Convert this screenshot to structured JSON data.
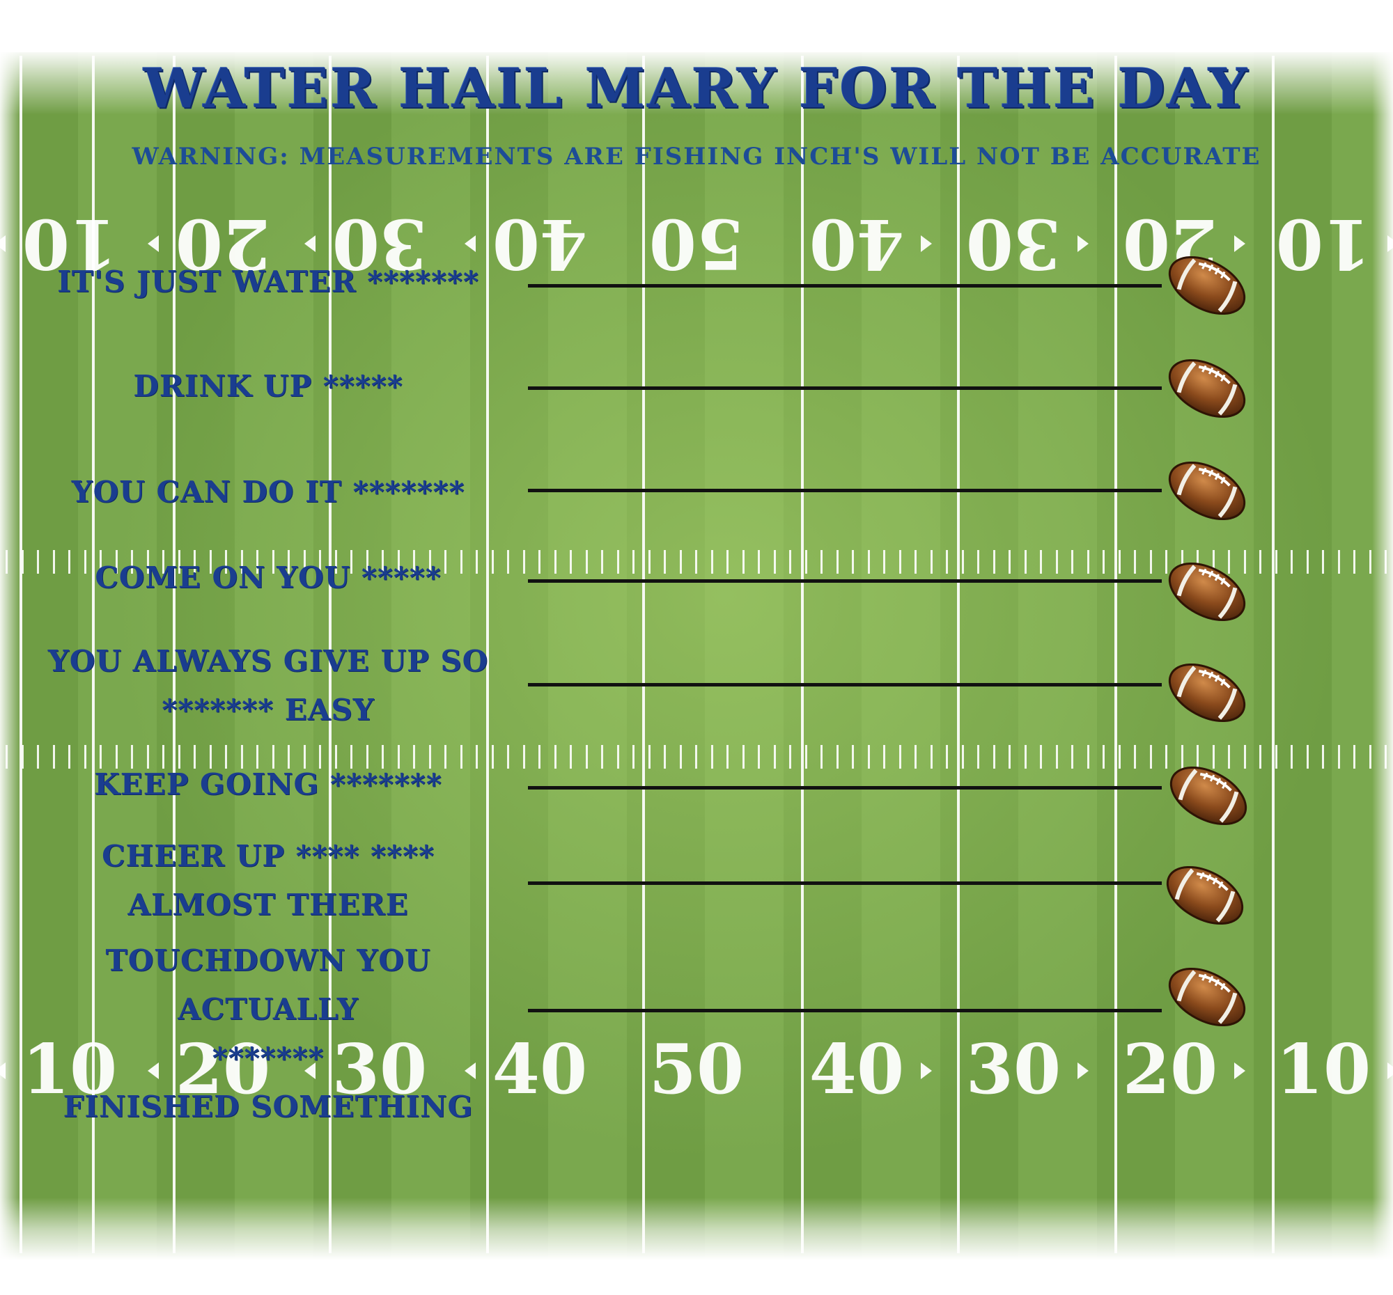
{
  "title": "WATER HAIL MARY FOR THE DAY",
  "subtitle": "WARNING: MEASUREMENTS ARE FISHING INCH'S WILL NOT BE ACCURATE",
  "field": {
    "top_numbers": [
      "10",
      "20",
      "30",
      "40",
      "50",
      "40",
      "30",
      "20",
      "10"
    ],
    "bottom_numbers": [
      "10",
      "20",
      "30",
      "40",
      "50",
      "40",
      "30",
      "20",
      "10"
    ]
  },
  "rows": [
    {
      "lines": [
        "IT'S JUST WATER *******"
      ]
    },
    {
      "lines": [
        "DRINK UP *****"
      ]
    },
    {
      "lines": [
        "YOU CAN DO IT *******"
      ]
    },
    {
      "lines": [
        "COME ON YOU *****"
      ]
    },
    {
      "lines": [
        "YOU ALWAYS GIVE UP SO",
        "******* EASY"
      ]
    },
    {
      "lines": [
        "KEEP GOING *******"
      ]
    },
    {
      "lines": [
        "CHEER UP **** ****",
        "ALMOST THERE"
      ]
    },
    {
      "lines": [
        "TOUCHDOWN YOU ACTUALLY",
        "*******",
        "FINISHED SOMETHING"
      ]
    }
  ],
  "icons": {
    "ball": "football-icon"
  },
  "colors": {
    "text": "#1a3d8f",
    "field": "#74a24a",
    "line": "#111111"
  }
}
